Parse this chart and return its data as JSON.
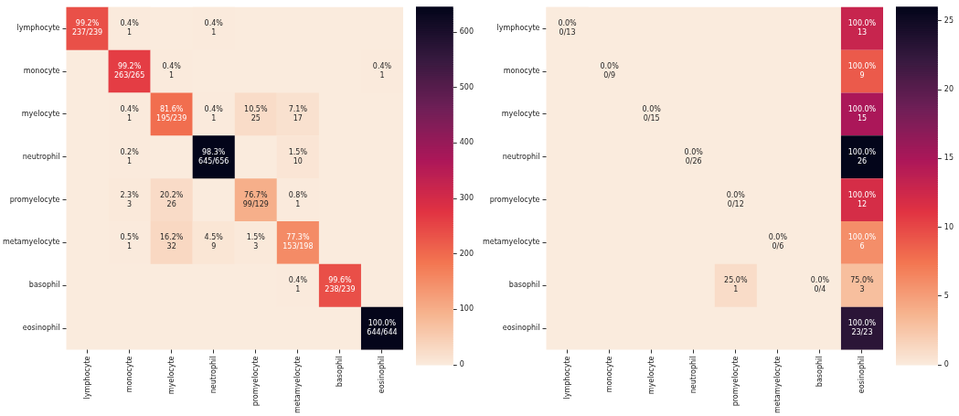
{
  "chart_data": [
    {
      "type": "heatmap",
      "categories": [
        "lymphocyte",
        "monocyte",
        "myelocyte",
        "neutrophil",
        "promyelocyte",
        "metamyelocyte",
        "basophil",
        "eosinophil"
      ],
      "y_categories": [
        "lymphocyte",
        "monocyte",
        "myelocyte",
        "neutrophil",
        "promyelocyte",
        "metamyelocyte",
        "basophil",
        "eosinophil"
      ],
      "cells": [
        [
          237,
          1,
          null,
          1,
          null,
          null,
          null,
          null
        ],
        [
          null,
          263,
          1,
          null,
          null,
          null,
          null,
          1
        ],
        [
          null,
          1,
          195,
          1,
          25,
          17,
          null,
          null
        ],
        [
          null,
          1,
          null,
          645,
          null,
          10,
          null,
          null
        ],
        [
          null,
          3,
          26,
          null,
          99,
          1,
          null,
          null
        ],
        [
          null,
          1,
          32,
          9,
          3,
          153,
          null,
          null
        ],
        [
          null,
          null,
          null,
          null,
          null,
          1,
          238,
          null
        ],
        [
          null,
          null,
          null,
          null,
          null,
          null,
          null,
          644
        ]
      ],
      "cell_labels": [
        [
          "99.2%\n237/239",
          "0.4%\n1",
          null,
          "0.4%\n1",
          null,
          null,
          null,
          null
        ],
        [
          null,
          "99.2%\n263/265",
          "0.4%\n1",
          null,
          null,
          null,
          null,
          "0.4%\n1"
        ],
        [
          null,
          "0.4%\n1",
          "81.6%\n195/239",
          "0.4%\n1",
          "10.5%\n25",
          "7.1%\n17",
          null,
          null
        ],
        [
          null,
          "0.2%\n1",
          null,
          "98.3%\n645/656",
          null,
          "1.5%\n10",
          null,
          null
        ],
        [
          null,
          "2.3%\n3",
          "20.2%\n26",
          null,
          "76.7%\n99/129",
          "0.8%\n1",
          null,
          null
        ],
        [
          null,
          "0.5%\n1",
          "16.2%\n32",
          "4.5%\n9",
          "1.5%\n3",
          "77.3%\n153/198",
          null,
          null
        ],
        [
          null,
          null,
          null,
          null,
          null,
          "0.4%\n1",
          "99.6%\n238/239",
          null
        ],
        [
          null,
          null,
          null,
          null,
          null,
          null,
          null,
          "100.0%\n644/644"
        ]
      ],
      "clim": [
        0,
        645
      ],
      "cticks": [
        0,
        100,
        200,
        300,
        400,
        500,
        600
      ]
    },
    {
      "type": "heatmap",
      "categories": [
        "lymphocyte",
        "monocyte",
        "myelocyte",
        "neutrophil",
        "promyelocyte",
        "metamyelocyte",
        "basophil",
        "eosinophil"
      ],
      "y_categories": [
        "lymphocyte",
        "monocyte",
        "myelocyte",
        "neutrophil",
        "promyelocyte",
        "metamyelocyte",
        "basophil",
        "eosinophil"
      ],
      "cells": [
        [
          0,
          null,
          null,
          null,
          null,
          null,
          null,
          13
        ],
        [
          null,
          0,
          null,
          null,
          null,
          null,
          null,
          9
        ],
        [
          null,
          null,
          0,
          null,
          null,
          null,
          null,
          15
        ],
        [
          null,
          null,
          null,
          0,
          null,
          null,
          null,
          26
        ],
        [
          null,
          null,
          null,
          null,
          0,
          null,
          null,
          12
        ],
        [
          null,
          null,
          null,
          null,
          null,
          0,
          null,
          6
        ],
        [
          null,
          null,
          null,
          null,
          1,
          null,
          0,
          3
        ],
        [
          null,
          null,
          null,
          null,
          null,
          null,
          null,
          23
        ]
      ],
      "cell_labels": [
        [
          "0.0%\n0/13",
          null,
          null,
          null,
          null,
          null,
          null,
          "100.0%\n13"
        ],
        [
          null,
          "0.0%\n0/9",
          null,
          null,
          null,
          null,
          null,
          "100.0%\n9"
        ],
        [
          null,
          null,
          "0.0%\n0/15",
          null,
          null,
          null,
          null,
          "100.0%\n15"
        ],
        [
          null,
          null,
          null,
          "0.0%\n0/26",
          null,
          null,
          null,
          "100.0%\n26"
        ],
        [
          null,
          null,
          null,
          null,
          "0.0%\n0/12",
          null,
          null,
          "100.0%\n12"
        ],
        [
          null,
          null,
          null,
          null,
          null,
          "0.0%\n0/6",
          null,
          "100.0%\n6"
        ],
        [
          null,
          null,
          null,
          null,
          "25.0%\n1",
          null,
          "0.0%\n0/4",
          "75.0%\n3"
        ],
        [
          null,
          null,
          null,
          null,
          null,
          null,
          null,
          "100.0%\n23/23"
        ]
      ],
      "clim": [
        0,
        26
      ],
      "cticks": [
        0,
        5,
        10,
        15,
        20,
        25
      ]
    }
  ]
}
